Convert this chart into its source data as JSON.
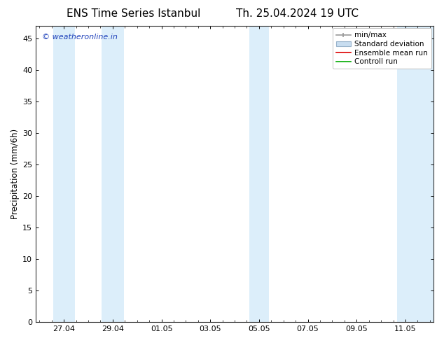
{
  "title_left": "ENS Time Series Istanbul",
  "title_right": "Th. 25.04.2024 19 UTC",
  "ylabel": "Precipitation (mm/6h)",
  "ylim": [
    0,
    47
  ],
  "yticks": [
    0,
    5,
    10,
    15,
    20,
    25,
    30,
    35,
    40,
    45
  ],
  "xtick_labels": [
    "27.04",
    "29.04",
    "01.05",
    "03.05",
    "05.05",
    "07.05",
    "09.05",
    "11.05"
  ],
  "xtick_positions": [
    1,
    3,
    5,
    7,
    9,
    11,
    13,
    15
  ],
  "xlim": [
    -0.15,
    16.15
  ],
  "background_color": "#ffffff",
  "plot_bg_color": "#ffffff",
  "watermark": "© weatheronline.in",
  "watermark_color": "#2244bb",
  "shaded_band_color": "#dceefa",
  "legend_entries": [
    "min/max",
    "Standard deviation",
    "Ensemble mean run",
    "Controll run"
  ],
  "legend_line_colors": [
    "#aaaaaa",
    "#bbccdd",
    "#ff0000",
    "#00aa00"
  ],
  "shaded_bands": [
    [
      0.55,
      1.45
    ],
    [
      2.55,
      3.45
    ],
    [
      8.6,
      9.4
    ],
    [
      14.65,
      16.15
    ]
  ],
  "title_fontsize": 11,
  "ylabel_fontsize": 8.5,
  "tick_fontsize": 8,
  "watermark_fontsize": 8,
  "legend_fontsize": 7.5
}
